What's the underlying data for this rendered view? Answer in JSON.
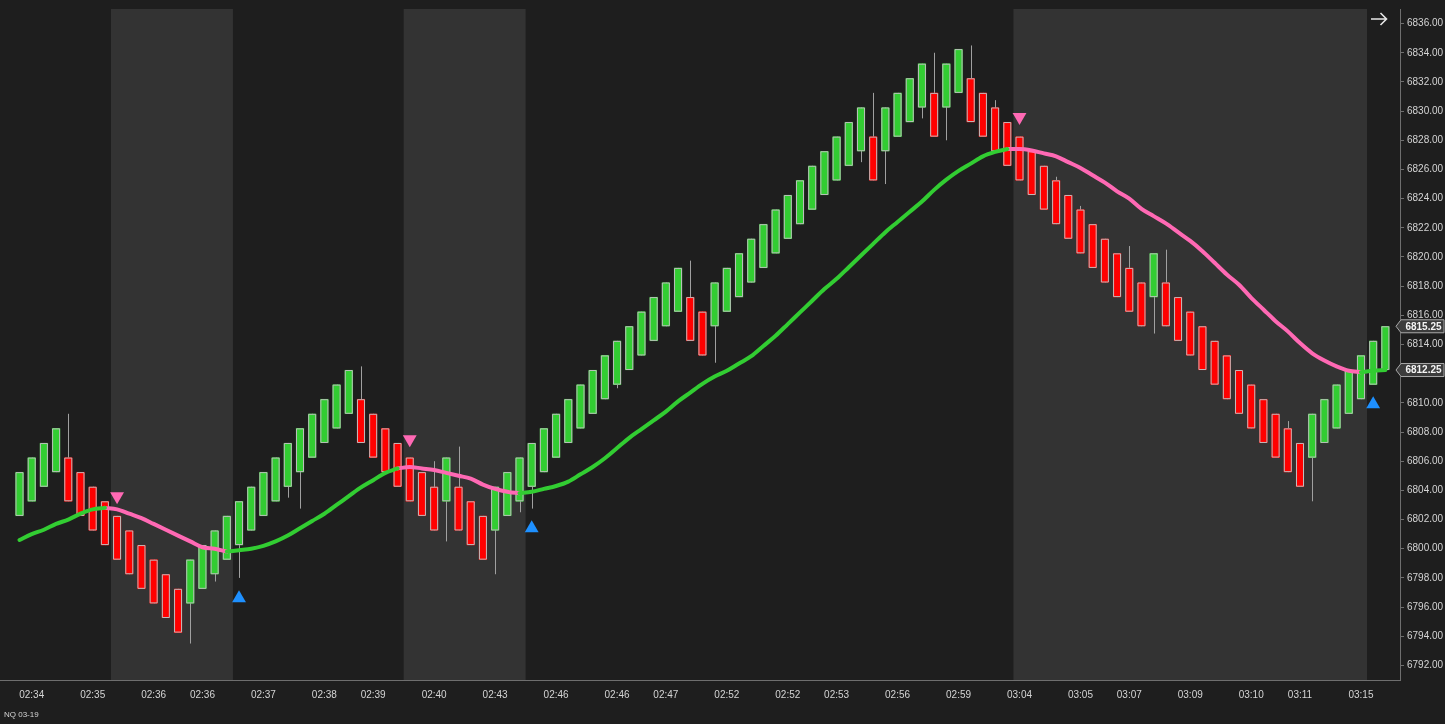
{
  "chart_data": {
    "type": "candlestick",
    "categories": [
      null,
      "02:34",
      null,
      null,
      null,
      null,
      "02:35",
      null,
      null,
      null,
      null,
      "02:36",
      null,
      null,
      null,
      "02:36",
      null,
      null,
      null,
      null,
      "02:37",
      null,
      null,
      null,
      null,
      "02:38",
      null,
      null,
      null,
      "02:39",
      null,
      null,
      null,
      null,
      "02:40",
      null,
      null,
      null,
      null,
      "02:43",
      null,
      null,
      null,
      null,
      "02:46",
      null,
      null,
      null,
      null,
      "02:46",
      null,
      null,
      null,
      "02:47",
      null,
      null,
      null,
      null,
      "02:52",
      null,
      null,
      null,
      null,
      "02:52",
      null,
      null,
      null,
      "02:53",
      null,
      null,
      null,
      null,
      "02:56",
      null,
      null,
      null,
      null,
      "02:59",
      null,
      null,
      null,
      null,
      "03:04",
      null,
      null,
      null,
      null,
      "03:05",
      null,
      null,
      null,
      "03:07",
      null,
      null,
      null,
      null,
      "03:09",
      null,
      null,
      null,
      null,
      "03:10",
      null,
      null,
      null,
      "03:11",
      null,
      null,
      null,
      null,
      "03:15",
      null,
      null
    ],
    "ohlc": [
      [
        6802.25,
        6805.25,
        6802.25,
        6805.25
      ],
      [
        6803.25,
        6806.25,
        6803.25,
        6806.25
      ],
      [
        6804.25,
        6807.25,
        6804.25,
        6807.25
      ],
      [
        6805.25,
        6808.25,
        6805.25,
        6808.25
      ],
      [
        6806.25,
        6809.25,
        6803.25,
        6803.25
      ],
      [
        6805.25,
        6805.25,
        6802.25,
        6802.25
      ],
      [
        6804.25,
        6804.25,
        6801.25,
        6801.25
      ],
      [
        6803.25,
        6803.25,
        6800.25,
        6800.25
      ],
      [
        6802.25,
        6802.25,
        6799.25,
        6799.25
      ],
      [
        6801.25,
        6801.25,
        6798.25,
        6798.25
      ],
      [
        6800.25,
        6800.25,
        6797.25,
        6797.25
      ],
      [
        6799.25,
        6799.25,
        6796.25,
        6796.25
      ],
      [
        6798.25,
        6798.25,
        6795.25,
        6795.25
      ],
      [
        6797.25,
        6797.25,
        6794.25,
        6794.25
      ],
      [
        6796.25,
        6799.25,
        6793.5,
        6799.25
      ],
      [
        6797.25,
        6800.25,
        6797.25,
        6800.25
      ],
      [
        6798.25,
        6801.25,
        6797.75,
        6801.25
      ],
      [
        6799.25,
        6802.25,
        6799.25,
        6802.25
      ],
      [
        6800.25,
        6803.25,
        6798,
        6803.25
      ],
      [
        6801.25,
        6804.25,
        6801.25,
        6804.25
      ],
      [
        6802.25,
        6805.25,
        6802.25,
        6805.25
      ],
      [
        6803.25,
        6806.25,
        6803.25,
        6806.25
      ],
      [
        6804.25,
        6807.25,
        6803.5,
        6807.25
      ],
      [
        6805.25,
        6808.25,
        6802.75,
        6808.25
      ],
      [
        6806.25,
        6809.25,
        6806.25,
        6809.25
      ],
      [
        6807.25,
        6810.25,
        6807.25,
        6810.25
      ],
      [
        6808.25,
        6811.25,
        6808.25,
        6811.25
      ],
      [
        6809.25,
        6812.25,
        6809.25,
        6812.25
      ],
      [
        6810.25,
        6812.5,
        6807.25,
        6807.25
      ],
      [
        6809.25,
        6809.25,
        6806.25,
        6806.25
      ],
      [
        6808.25,
        6808.25,
        6805.25,
        6805.25
      ],
      [
        6807.25,
        6807.25,
        6804.25,
        6804.25
      ],
      [
        6806.25,
        6806.25,
        6803.25,
        6803.25
      ],
      [
        6805.25,
        6805.25,
        6802.25,
        6802.25
      ],
      [
        6804.25,
        6806,
        6801.25,
        6801.25
      ],
      [
        6803.25,
        6806.25,
        6800.5,
        6806.25
      ],
      [
        6804.25,
        6807,
        6801.25,
        6801.25
      ],
      [
        6803.25,
        6803.25,
        6800.25,
        6800.25
      ],
      [
        6802.25,
        6802.25,
        6799.25,
        6799.25
      ],
      [
        6801.25,
        6804.25,
        6798.25,
        6804.25
      ],
      [
        6802.25,
        6805.25,
        6802.25,
        6805.25
      ],
      [
        6803.25,
        6806.25,
        6802.5,
        6806.25
      ],
      [
        6804.25,
        6807.25,
        6802.75,
        6807.25
      ],
      [
        6805.25,
        6808.25,
        6805.25,
        6808.25
      ],
      [
        6806.25,
        6809.25,
        6806.25,
        6809.25
      ],
      [
        6807.25,
        6810.25,
        6807.25,
        6810.25
      ],
      [
        6808.25,
        6811.25,
        6808.25,
        6811.25
      ],
      [
        6809.25,
        6812.25,
        6809.25,
        6812.25
      ],
      [
        6810.25,
        6813.25,
        6810.25,
        6813.25
      ],
      [
        6811.25,
        6814.25,
        6811,
        6814.25
      ],
      [
        6812.25,
        6815.25,
        6812.25,
        6815.25
      ],
      [
        6813.25,
        6816.25,
        6813.25,
        6816.25
      ],
      [
        6814.25,
        6817.25,
        6814.25,
        6817.25
      ],
      [
        6815.25,
        6818.25,
        6815.25,
        6818.25
      ],
      [
        6816.25,
        6819.25,
        6816.25,
        6819.25
      ],
      [
        6817.25,
        6819.75,
        6814.25,
        6814.25
      ],
      [
        6816.25,
        6816.25,
        6813.25,
        6813.25
      ],
      [
        6815.25,
        6818.25,
        6812.75,
        6818.25
      ],
      [
        6816.25,
        6819.25,
        6816.25,
        6819.25
      ],
      [
        6817.25,
        6820.25,
        6817.25,
        6820.25
      ],
      [
        6818.25,
        6821.25,
        6818.25,
        6821.25
      ],
      [
        6819.25,
        6822.25,
        6819.25,
        6822.25
      ],
      [
        6820.25,
        6823.25,
        6820.25,
        6823.25
      ],
      [
        6821.25,
        6824.25,
        6821.25,
        6824.25
      ],
      [
        6822.25,
        6825.25,
        6822.25,
        6825.25
      ],
      [
        6823.25,
        6826.25,
        6823.25,
        6826.25
      ],
      [
        6824.25,
        6827.25,
        6824.25,
        6827.25
      ],
      [
        6825.25,
        6828.25,
        6825.25,
        6828.25
      ],
      [
        6826.25,
        6829.25,
        6826.25,
        6829.25
      ],
      [
        6827.25,
        6830.25,
        6826.5,
        6830.25
      ],
      [
        6828.25,
        6831.25,
        6825.25,
        6825.25
      ],
      [
        6827.25,
        6830.25,
        6825,
        6830.25
      ],
      [
        6828.25,
        6831.25,
        6828.25,
        6831.25
      ],
      [
        6829.25,
        6832.25,
        6829.25,
        6832.25
      ],
      [
        6830.25,
        6833.25,
        6829.5,
        6833.25
      ],
      [
        6831.25,
        6834,
        6828.25,
        6828.25
      ],
      [
        6830.25,
        6833.25,
        6828,
        6833.25
      ],
      [
        6831.25,
        6834.25,
        6831.25,
        6834.25
      ],
      [
        6832.25,
        6834.5,
        6829.25,
        6829.25
      ],
      [
        6831.25,
        6831.25,
        6828.25,
        6828.25
      ],
      [
        6830.25,
        6830.75,
        6827.25,
        6827.25
      ],
      [
        6829.25,
        6829.25,
        6826.25,
        6826.25
      ],
      [
        6828.25,
        6828.25,
        6825.25,
        6825.25
      ],
      [
        6827.25,
        6827.25,
        6824.25,
        6824.25
      ],
      [
        6826.25,
        6826.25,
        6823.25,
        6823.25
      ],
      [
        6825.25,
        6825.5,
        6822.25,
        6822.25
      ],
      [
        6824.25,
        6824.25,
        6821.25,
        6821.25
      ],
      [
        6823.25,
        6823.5,
        6820.25,
        6820.25
      ],
      [
        6822.25,
        6822.25,
        6819.25,
        6819.25
      ],
      [
        6821.25,
        6821.25,
        6818.25,
        6818.25
      ],
      [
        6820.25,
        6820.25,
        6817.25,
        6817.25
      ],
      [
        6819.25,
        6820.75,
        6816.25,
        6816.25
      ],
      [
        6818.25,
        6818.25,
        6815.25,
        6815.25
      ],
      [
        6817.25,
        6820.25,
        6814.75,
        6820.25
      ],
      [
        6818.25,
        6820.5,
        6815.25,
        6815.25
      ],
      [
        6817.25,
        6817.25,
        6814.25,
        6814.25
      ],
      [
        6816.25,
        6816.25,
        6813.25,
        6813.25
      ],
      [
        6815.25,
        6815.25,
        6812.25,
        6812.25
      ],
      [
        6814.25,
        6814.25,
        6811.25,
        6811.25
      ],
      [
        6813.25,
        6813.25,
        6810.25,
        6810.25
      ],
      [
        6812.25,
        6812.25,
        6809.25,
        6809.25
      ],
      [
        6811.25,
        6811.25,
        6808.25,
        6808.25
      ],
      [
        6810.25,
        6810.25,
        6807.25,
        6807.25
      ],
      [
        6809.25,
        6809.25,
        6806.25,
        6806.25
      ],
      [
        6808.25,
        6808.75,
        6805.25,
        6805.25
      ],
      [
        6807.25,
        6807.25,
        6804.25,
        6804.25
      ],
      [
        6806.25,
        6809.25,
        6803.25,
        6809.25
      ],
      [
        6807.25,
        6810.25,
        6807.25,
        6810.25
      ],
      [
        6808.25,
        6811.25,
        6808.25,
        6811.25
      ],
      [
        6809.25,
        6812.25,
        6809.25,
        6812.25
      ],
      [
        6810.25,
        6813.25,
        6810.25,
        6813.25
      ],
      [
        6811.25,
        6814.25,
        6811.25,
        6814.25
      ],
      [
        6812.25,
        6815.25,
        6812.25,
        6815.25
      ]
    ],
    "colors": [
      "#32cd32",
      "#32cd32",
      "#32cd32",
      "#32cd32",
      "#ff0000",
      "#ff0000",
      "#ff0000",
      "#ff0000",
      "#ff0000",
      "#ff0000",
      "#ff0000",
      "#ff0000",
      "#ff0000",
      "#ff0000",
      "#32cd32",
      "#32cd32",
      "#32cd32",
      "#32cd32",
      "#32cd32",
      "#32cd32",
      "#32cd32",
      "#32cd32",
      "#32cd32",
      "#32cd32",
      "#32cd32",
      "#32cd32",
      "#32cd32",
      "#32cd32",
      "#ff0000",
      "#ff0000",
      "#ff0000",
      "#ff0000",
      "#ff0000",
      "#ff0000",
      "#ff0000",
      "#32cd32",
      "#ff0000",
      "#ff0000",
      "#ff0000",
      "#32cd32",
      "#32cd32",
      "#32cd32",
      "#32cd32",
      "#32cd32",
      "#32cd32",
      "#32cd32",
      "#32cd32",
      "#32cd32",
      "#32cd32",
      "#32cd32",
      "#32cd32",
      "#32cd32",
      "#32cd32",
      "#32cd32",
      "#32cd32",
      "#ff0000",
      "#ff0000",
      "#32cd32",
      "#32cd32",
      "#32cd32",
      "#32cd32",
      "#32cd32",
      "#32cd32",
      "#32cd32",
      "#32cd32",
      "#32cd32",
      "#32cd32",
      "#32cd32",
      "#32cd32",
      "#32cd32",
      "#ff0000",
      "#32cd32",
      "#32cd32",
      "#32cd32",
      "#32cd32",
      "#ff0000",
      "#32cd32",
      "#32cd32",
      "#ff0000",
      "#ff0000",
      "#ff0000",
      "#ff0000",
      "#ff0000",
      "#ff0000",
      "#ff0000",
      "#ff0000",
      "#ff0000",
      "#ff0000",
      "#ff0000",
      "#ff0000",
      "#ff0000",
      "#ff0000",
      "#ff0000",
      "#32cd32",
      "#ff0000",
      "#ff0000",
      "#ff0000",
      "#ff0000",
      "#ff0000",
      "#ff0000",
      "#ff0000",
      "#ff0000",
      "#ff0000",
      "#ff0000",
      "#ff0000",
      "#ff0000",
      "#32cd32",
      "#32cd32",
      "#32cd32",
      "#32cd32",
      "#32cd32",
      "#32cd32",
      "#32cd32"
    ],
    "series": [
      {
        "type": "line",
        "color": "#32cd32",
        "values": [
          6800.6,
          6801,
          6801.3,
          6801.7,
          6802,
          6802.4,
          6802.7,
          6802.8,
          null,
          null,
          null,
          null,
          null,
          null,
          null,
          null,
          null,
          6799.8,
          6799.9,
          6800,
          6800.2,
          6800.5,
          6800.9,
          6801.4,
          6801.9,
          6802.4,
          6803,
          6803.6,
          6804.2,
          6804.7,
          6805.2,
          6805.5,
          null,
          null,
          null,
          null,
          null,
          null,
          null,
          null,
          null,
          6803.8,
          6803.9,
          6804.1,
          6804.3,
          6804.6,
          6805.1,
          6805.6,
          6806.2,
          6806.9,
          6807.6,
          6808.2,
          6808.8,
          6809.4,
          6810.1,
          6810.7,
          6811.3,
          6811.8,
          6812.2,
          6812.7,
          6813.2,
          6813.9,
          6814.6,
          6815.4,
          6816.2,
          6817,
          6817.8,
          6818.5,
          6819.3,
          6820.1,
          6820.9,
          6821.7,
          6822.4,
          6823.1,
          6823.8,
          6824.6,
          6825.3,
          6825.9,
          6826.4,
          6826.9,
          6827.2,
          6827.4,
          null,
          null,
          null,
          null,
          null,
          null,
          null,
          null,
          null,
          null,
          null,
          null,
          null,
          null,
          null,
          null,
          null,
          null,
          null,
          null,
          null,
          null,
          null,
          null,
          null,
          null,
          null,
          null,
          6812.1,
          6812.2,
          6812.25
        ]
      },
      {
        "type": "line",
        "color": "#ff69b4",
        "values": [
          null,
          null,
          null,
          null,
          null,
          null,
          null,
          6802.8,
          6802.7,
          6802.4,
          6802.1,
          6801.7,
          6801.3,
          6800.9,
          6800.5,
          6800.1,
          6800,
          6799.8,
          null,
          null,
          null,
          null,
          null,
          null,
          null,
          null,
          null,
          null,
          null,
          null,
          null,
          6805.5,
          6805.6,
          6805.5,
          6805.4,
          6805.2,
          6805,
          6804.8,
          6804.4,
          6804.1,
          6803.9,
          6803.8,
          null,
          null,
          null,
          null,
          null,
          null,
          null,
          null,
          null,
          null,
          null,
          null,
          null,
          null,
          null,
          null,
          null,
          null,
          null,
          null,
          null,
          null,
          null,
          null,
          null,
          null,
          null,
          null,
          null,
          null,
          null,
          null,
          null,
          null,
          null,
          null,
          null,
          null,
          null,
          6827.4,
          6827.4,
          6827.3,
          6827.1,
          6826.9,
          6826.5,
          6826.1,
          6825.6,
          6825.1,
          6824.5,
          6824,
          6823.3,
          6822.8,
          6822.3,
          6821.7,
          6821.1,
          6820.4,
          6819.6,
          6818.8,
          6818.1,
          6817.2,
          6816.4,
          6815.6,
          6814.9,
          6814.1,
          6813.4,
          6812.9,
          6812.5,
          6812.2,
          6812.1,
          null,
          null
        ]
      },
      {
        "type": "scatter",
        "color": "#ff69b4",
        "marker": "triangle",
        "values": [
          null,
          null,
          null,
          null,
          null,
          null,
          null,
          null,
          6803.6,
          null,
          null,
          null,
          null,
          null,
          null,
          null,
          null,
          null,
          null,
          null,
          null,
          null,
          null,
          null,
          null,
          null,
          null,
          null,
          null,
          null,
          null,
          null,
          6807.5,
          null,
          null,
          null,
          null,
          null,
          null,
          null,
          null,
          null,
          null,
          null,
          null,
          null,
          null,
          null,
          null,
          null,
          null,
          null,
          null,
          null,
          null,
          null,
          null,
          null,
          null,
          null,
          null,
          null,
          null,
          null,
          null,
          null,
          null,
          null,
          null,
          null,
          null,
          null,
          null,
          null,
          null,
          null,
          null,
          null,
          null,
          null,
          null,
          null,
          6829.6,
          null,
          null,
          null,
          null,
          null,
          null,
          null,
          null,
          null,
          null,
          null,
          null,
          null,
          null,
          null,
          null,
          null,
          null,
          null,
          null,
          null,
          null,
          null,
          null,
          null,
          null,
          null,
          null,
          null,
          null
        ]
      },
      {
        "type": "scatter",
        "color": "#1e90ff",
        "marker": "triangle",
        "values": [
          null,
          null,
          null,
          null,
          null,
          null,
          null,
          null,
          null,
          null,
          null,
          null,
          null,
          null,
          null,
          null,
          null,
          null,
          6796.6,
          null,
          null,
          null,
          null,
          null,
          null,
          null,
          null,
          null,
          null,
          null,
          null,
          null,
          null,
          null,
          null,
          null,
          null,
          null,
          null,
          null,
          null,
          null,
          6801.4,
          null,
          null,
          null,
          null,
          null,
          null,
          null,
          null,
          null,
          null,
          null,
          null,
          null,
          null,
          null,
          null,
          null,
          null,
          null,
          null,
          null,
          null,
          null,
          null,
          null,
          null,
          null,
          null,
          null,
          null,
          null,
          null,
          null,
          null,
          null,
          null,
          null,
          null,
          null,
          null,
          null,
          null,
          null,
          null,
          null,
          null,
          null,
          null,
          null,
          null,
          null,
          null,
          null,
          null,
          null,
          null,
          null,
          null,
          null,
          null,
          null,
          null,
          null,
          null,
          null,
          null,
          null,
          null,
          6809.9,
          null
        ]
      }
    ],
    "ylim": [
      6791,
      6837
    ],
    "yticks": [
      {
        "value": 6792,
        "label": "6792.00"
      },
      {
        "value": 6794,
        "label": "6794.00"
      },
      {
        "value": 6796,
        "label": "6796.00"
      },
      {
        "value": 6798,
        "label": "6798.00"
      },
      {
        "value": 6800,
        "label": "6800.00"
      },
      {
        "value": 6802,
        "label": "6802.00"
      },
      {
        "value": 6804,
        "label": "6804.00"
      },
      {
        "value": 6806,
        "label": "6806.00"
      },
      {
        "value": 6808,
        "label": "6808.00"
      },
      {
        "value": 6810,
        "label": "6810.00"
      },
      {
        "value": 6814,
        "label": "6814.00"
      },
      {
        "value": 6816,
        "label": "6816.00"
      },
      {
        "value": 6818,
        "label": "6818.00"
      },
      {
        "value": 6820,
        "label": "6820.00"
      },
      {
        "value": 6822,
        "label": "6822.00"
      },
      {
        "value": 6824,
        "label": "6824.00"
      },
      {
        "value": 6826,
        "label": "6826.00"
      },
      {
        "value": 6828,
        "label": "6828.00"
      },
      {
        "value": 6830,
        "label": "6830.00"
      },
      {
        "value": 6832,
        "label": "6832.00"
      },
      {
        "value": 6834,
        "label": "6834.00"
      },
      {
        "value": 6836,
        "label": "6836.00"
      }
    ],
    "annotations": [
      "6815.25",
      "6812.25",
      "NQ 03-19"
    ]
  }
}
